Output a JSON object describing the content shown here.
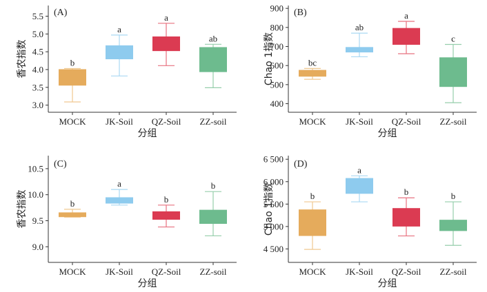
{
  "chart_data": [
    {
      "type": "box",
      "panel_label": "(A)",
      "title": "",
      "xlabel": "分组",
      "ylabel": "香农指数",
      "ylim": [
        2.8,
        5.8
      ],
      "yticks": [
        3.0,
        3.5,
        4.0,
        4.5,
        5.0,
        5.5
      ],
      "ytick_labels": [
        "3.0",
        "3.5",
        "4.0",
        "4.5",
        "5.0",
        "5.5"
      ],
      "categories": [
        "MOCK",
        "JK-Soil",
        "QZ-Soil",
        "ZZ-soil"
      ],
      "boxes": [
        {
          "whisker_low": 3.09,
          "q1": 3.55,
          "q3": 4.01,
          "whisker_high": 4.03,
          "sig": "b"
        },
        {
          "whisker_low": 3.82,
          "q1": 4.29,
          "q3": 4.68,
          "whisker_high": 4.97,
          "sig": "a"
        },
        {
          "whisker_low": 4.11,
          "q1": 4.52,
          "q3": 4.93,
          "whisker_high": 5.3,
          "sig": "a"
        },
        {
          "whisker_low": 3.49,
          "q1": 3.93,
          "q3": 4.63,
          "whisker_high": 4.71,
          "sig": "ab"
        }
      ]
    },
    {
      "type": "box",
      "panel_label": "(B)",
      "title": "",
      "xlabel": "分组",
      "ylabel": "Chao 1指数",
      "ylim": [
        355,
        915
      ],
      "yticks": [
        400,
        500,
        600,
        700,
        800,
        900
      ],
      "ytick_labels": [
        "400",
        "500",
        "600",
        "700",
        "800",
        "900"
      ],
      "categories": [
        "MOCK",
        "JK-Soil",
        "QZ-Soil",
        "ZZ-soil"
      ],
      "boxes": [
        {
          "whisker_low": 528,
          "q1": 542,
          "q3": 577,
          "whisker_high": 585,
          "sig": "bc"
        },
        {
          "whisker_low": 646,
          "q1": 669,
          "q3": 697,
          "whisker_high": 770,
          "sig": "ab"
        },
        {
          "whisker_low": 662,
          "q1": 709,
          "q3": 797,
          "whisker_high": 832,
          "sig": "a"
        },
        {
          "whisker_low": 405,
          "q1": 488,
          "q3": 643,
          "whisker_high": 711,
          "sig": "c"
        }
      ]
    },
    {
      "type": "box",
      "panel_label": "(C)",
      "title": "",
      "xlabel": "分组",
      "ylabel": "香农指数",
      "ylim": [
        8.7,
        10.75
      ],
      "yticks": [
        9.0,
        9.5,
        10.0,
        10.5
      ],
      "ytick_labels": [
        "9.0",
        "9.5",
        "10.0",
        "10.5"
      ],
      "categories": [
        "MOCK",
        "JK-Soil",
        "QZ-Soil",
        "ZZ-soil"
      ],
      "boxes": [
        {
          "whisker_low": 9.57,
          "q1": 9.57,
          "q3": 9.66,
          "whisker_high": 9.72,
          "sig": "b"
        },
        {
          "whisker_low": 9.8,
          "q1": 9.83,
          "q3": 9.95,
          "whisker_high": 10.1,
          "sig": "a"
        },
        {
          "whisker_low": 9.38,
          "q1": 9.52,
          "q3": 9.68,
          "whisker_high": 9.8,
          "sig": "b"
        },
        {
          "whisker_low": 9.21,
          "q1": 9.44,
          "q3": 9.71,
          "whisker_high": 10.06,
          "sig": "b"
        }
      ]
    },
    {
      "type": "box",
      "panel_label": "(D)",
      "title": "",
      "xlabel": "分组",
      "ylabel": "Chao 1指数",
      "ylim": [
        4200,
        6580
      ],
      "yticks": [
        4500,
        5000,
        5500,
        6000,
        6500
      ],
      "ytick_labels": [
        "4 500",
        "5 000",
        "5 500",
        "6 000",
        "6 500"
      ],
      "categories": [
        "MOCK",
        "JK-Soil",
        "QZ-Soil",
        "ZZ-soil"
      ],
      "boxes": [
        {
          "whisker_low": 4490,
          "q1": 4790,
          "q3": 5380,
          "whisker_high": 5550,
          "sig": "b"
        },
        {
          "whisker_low": 5550,
          "q1": 5730,
          "q3": 6080,
          "whisker_high": 6130,
          "sig": "a"
        },
        {
          "whisker_low": 4790,
          "q1": 5000,
          "q3": 5410,
          "whisker_high": 5640,
          "sig": "b"
        },
        {
          "whisker_low": 4580,
          "q1": 4900,
          "q3": 5150,
          "whisker_high": 5550,
          "sig": "b"
        }
      ]
    }
  ],
  "colors": {
    "box": [
      "#e5ab5c",
      "#8ecbee",
      "#db3b52",
      "#6dbb8e"
    ],
    "whisker": [
      "#f0c890",
      "#a9d8f3",
      "#e8707f",
      "#95ceab"
    ]
  }
}
